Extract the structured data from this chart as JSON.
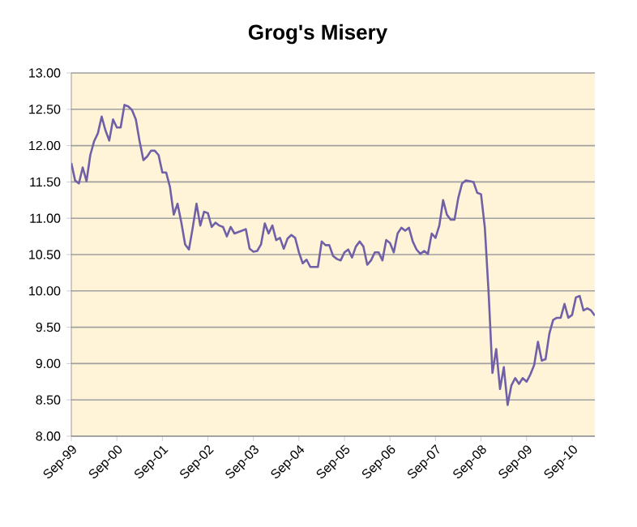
{
  "chart_data": {
    "type": "line",
    "title": "Grog's Misery",
    "x": [
      "1999-09",
      "1999-10",
      "1999-11",
      "1999-12",
      "2000-01",
      "2000-02",
      "2000-03",
      "2000-04",
      "2000-05",
      "2000-06",
      "2000-07",
      "2000-08",
      "2000-09",
      "2000-10",
      "2000-11",
      "2000-12",
      "2001-01",
      "2001-02",
      "2001-03",
      "2001-04",
      "2001-05",
      "2001-06",
      "2001-07",
      "2001-08",
      "2001-09",
      "2001-10",
      "2001-11",
      "2001-12",
      "2002-01",
      "2002-02",
      "2002-03",
      "2002-04",
      "2002-05",
      "2002-06",
      "2002-07",
      "2002-08",
      "2002-09",
      "2002-10",
      "2002-11",
      "2002-12",
      "2003-01",
      "2003-02",
      "2003-03",
      "2003-04",
      "2003-05",
      "2003-06",
      "2003-07",
      "2003-08",
      "2003-09",
      "2003-10",
      "2003-11",
      "2003-12",
      "2004-01",
      "2004-02",
      "2004-03",
      "2004-04",
      "2004-05",
      "2004-06",
      "2004-07",
      "2004-08",
      "2004-09",
      "2004-10",
      "2004-11",
      "2004-12",
      "2005-01",
      "2005-02",
      "2005-03",
      "2005-04",
      "2005-05",
      "2005-06",
      "2005-07",
      "2005-08",
      "2005-09",
      "2005-10",
      "2005-11",
      "2005-12",
      "2006-01",
      "2006-02",
      "2006-03",
      "2006-04",
      "2006-05",
      "2006-06",
      "2006-07",
      "2006-08",
      "2006-09",
      "2006-10",
      "2006-11",
      "2006-12",
      "2007-01",
      "2007-02",
      "2007-03",
      "2007-04",
      "2007-05",
      "2007-06",
      "2007-07",
      "2007-08",
      "2007-09",
      "2007-10",
      "2007-11",
      "2007-12",
      "2008-01",
      "2008-02",
      "2008-03",
      "2008-04",
      "2008-05",
      "2008-06",
      "2008-07",
      "2008-08",
      "2008-09",
      "2008-10",
      "2008-11",
      "2008-12",
      "2009-01",
      "2009-02",
      "2009-03",
      "2009-04",
      "2009-05",
      "2009-06",
      "2009-07",
      "2009-08",
      "2009-09",
      "2009-10",
      "2009-11",
      "2009-12",
      "2010-01",
      "2010-02",
      "2010-03",
      "2010-04",
      "2010-05",
      "2010-06",
      "2010-07",
      "2010-08",
      "2010-09",
      "2010-10",
      "2010-11",
      "2010-12",
      "2011-01",
      "2011-02",
      "2011-03"
    ],
    "series": [
      {
        "color": "#7060a8",
        "values": [
          11.76,
          11.52,
          11.48,
          11.7,
          11.51,
          11.87,
          12.06,
          12.17,
          12.4,
          12.21,
          12.07,
          12.36,
          12.25,
          12.25,
          12.56,
          12.54,
          12.49,
          12.36,
          12.06,
          11.8,
          11.85,
          11.93,
          11.93,
          11.87,
          11.63,
          11.63,
          11.43,
          11.05,
          11.2,
          10.94,
          10.64,
          10.57,
          10.87,
          11.2,
          10.9,
          11.09,
          11.07,
          10.88,
          10.94,
          10.9,
          10.88,
          10.75,
          10.88,
          10.79,
          10.81,
          10.83,
          10.85,
          10.58,
          10.54,
          10.55,
          10.64,
          10.93,
          10.79,
          10.9,
          10.7,
          10.73,
          10.58,
          10.72,
          10.77,
          10.73,
          10.53,
          10.38,
          10.43,
          10.33,
          10.33,
          10.33,
          10.68,
          10.63,
          10.63,
          10.48,
          10.44,
          10.42,
          10.53,
          10.57,
          10.46,
          10.61,
          10.68,
          10.61,
          10.36,
          10.42,
          10.53,
          10.53,
          10.42,
          10.7,
          10.66,
          10.53,
          10.79,
          10.87,
          10.83,
          10.87,
          10.68,
          10.57,
          10.51,
          10.55,
          10.51,
          10.79,
          10.73,
          10.9,
          11.25,
          11.05,
          10.98,
          10.98,
          11.28,
          11.48,
          11.52,
          11.51,
          11.5,
          11.35,
          11.33,
          10.87,
          9.97,
          8.87,
          9.2,
          8.65,
          8.95,
          8.43,
          8.7,
          8.8,
          8.72,
          8.8,
          8.75,
          8.85,
          8.98,
          9.3,
          9.04,
          9.06,
          9.41,
          9.6,
          9.63,
          9.63,
          9.82,
          9.63,
          9.67,
          9.91,
          9.93,
          9.73,
          9.76,
          9.73,
          9.66
        ]
      }
    ],
    "xlim": [
      "1999-09",
      "2011-03"
    ],
    "xticks": [
      {
        "value": "1999-09",
        "label": "Sep-99"
      },
      {
        "value": "2000-09",
        "label": "Sep-00"
      },
      {
        "value": "2001-09",
        "label": "Sep-01"
      },
      {
        "value": "2002-09",
        "label": "Sep-02"
      },
      {
        "value": "2003-09",
        "label": "Sep-03"
      },
      {
        "value": "2004-09",
        "label": "Sep-04"
      },
      {
        "value": "2005-09",
        "label": "Sep-05"
      },
      {
        "value": "2006-09",
        "label": "Sep-06"
      },
      {
        "value": "2007-09",
        "label": "Sep-07"
      },
      {
        "value": "2008-09",
        "label": "Sep-08"
      },
      {
        "value": "2009-09",
        "label": "Sep-09"
      },
      {
        "value": "2010-09",
        "label": "Sep-10"
      }
    ],
    "ylim": [
      8,
      13
    ],
    "yticks": [
      {
        "value": 8,
        "label": "8.00"
      },
      {
        "value": 8.5,
        "label": "8.50"
      },
      {
        "value": 9,
        "label": "9.00"
      },
      {
        "value": 9.5,
        "label": "9.50"
      },
      {
        "value": 10,
        "label": "10.00"
      },
      {
        "value": 10.5,
        "label": "10.50"
      },
      {
        "value": 11,
        "label": "11.00"
      },
      {
        "value": 11.5,
        "label": "11.50"
      },
      {
        "value": 12,
        "label": "12.00"
      },
      {
        "value": 12.5,
        "label": "12.50"
      },
      {
        "value": 13,
        "label": "13.00"
      }
    ],
    "grid": "y",
    "marker": "none",
    "line_style": "solid"
  }
}
